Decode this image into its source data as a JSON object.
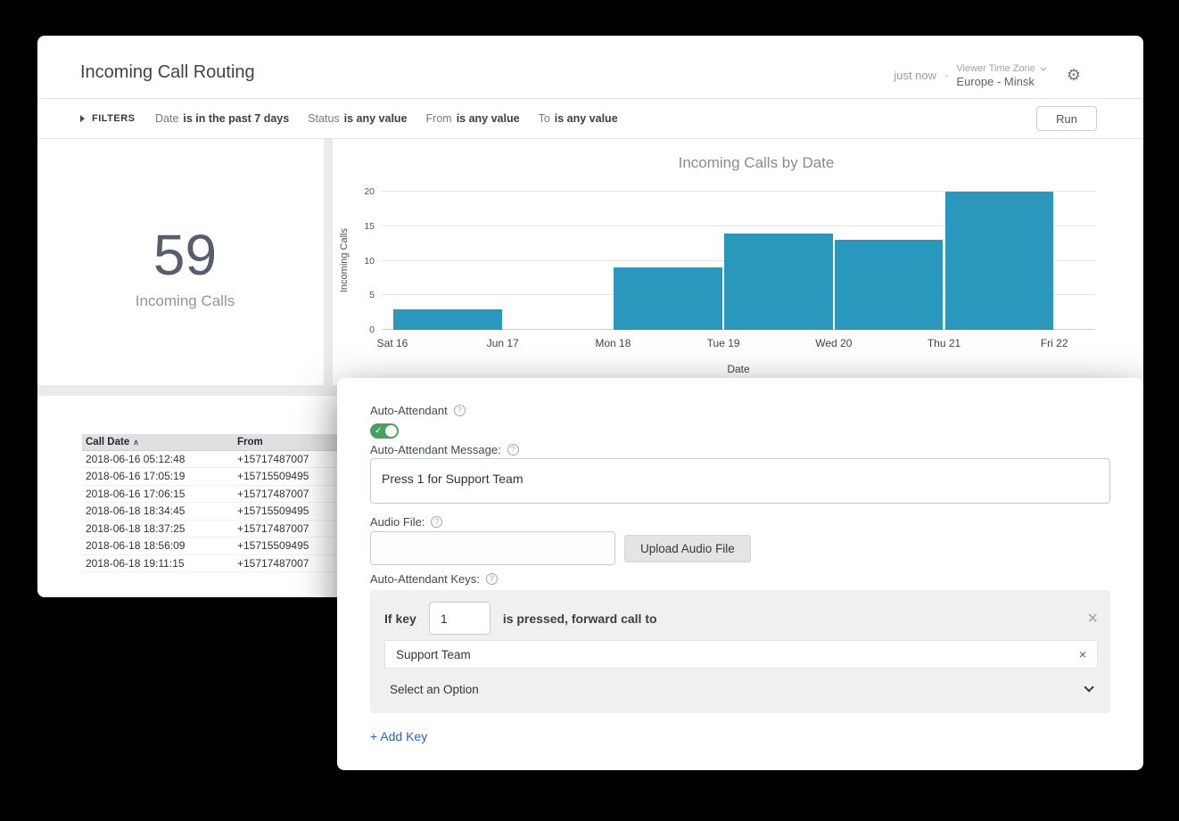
{
  "app": {
    "accent_blue": "#2563c9",
    "toggle_green": "#46a35e"
  },
  "icons": {
    "help": "?",
    "gear": "⚙",
    "close": "×",
    "remove": "×",
    "check": "✓",
    "sort_asc": "∧"
  },
  "header": {
    "title": "Incoming Call Routing",
    "updated_text": "just now",
    "dot": "·",
    "timezone_label": "Viewer Time Zone",
    "timezone_value": "Europe - Minsk"
  },
  "filters": {
    "label": "FILTERS",
    "items": [
      {
        "field": "Date",
        "condition": "is in the past 7 days"
      },
      {
        "field": "Status",
        "condition": "is any value"
      },
      {
        "field": "From",
        "condition": "is any value"
      },
      {
        "field": "To",
        "condition": "is any value"
      }
    ],
    "run_label": "Run"
  },
  "kpi": {
    "value": "59",
    "label": "Incoming Calls"
  },
  "chart_data": {
    "type": "bar",
    "title": "Incoming Calls by Date",
    "categories": [
      "Sat 16",
      "Jun 17",
      "Mon 18",
      "Tue 19",
      "Wed 20",
      "Thu 21",
      "Fri 22"
    ],
    "values": [
      3,
      0,
      9,
      14,
      13,
      20,
      0
    ],
    "xlabel": "Date",
    "ylabel": "Incoming Calls",
    "ylim": [
      0,
      20
    ],
    "yticks": [
      0,
      5,
      10,
      15,
      20
    ],
    "grid": true,
    "legend": "none",
    "bar_color": "#2a97bd"
  },
  "table": {
    "columns": [
      {
        "label": "Call Date",
        "sorted": "asc"
      },
      {
        "label": "From"
      }
    ],
    "rows": [
      [
        "2018-06-16 05:12:48",
        "+15717487007"
      ],
      [
        "2018-06-16 17:05:19",
        "+15715509495"
      ],
      [
        "2018-06-16 17:06:15",
        "+15717487007"
      ],
      [
        "2018-06-18 18:34:45",
        "+15715509495"
      ],
      [
        "2018-06-18 18:37:25",
        "+15717487007"
      ],
      [
        "2018-06-18 18:56:09",
        "+15715509495"
      ],
      [
        "2018-06-18 19:11:15",
        "+15717487007"
      ]
    ]
  },
  "attendant": {
    "toggle_label": "Auto-Attendant",
    "toggle_state": "on",
    "message_label": "Auto-Attendant Message:",
    "message_value": "Press 1 for Support Team",
    "audio_label": "Audio File:",
    "audio_value": "",
    "upload_button_label": "Upload Audio File",
    "keys_label": "Auto-Attendant Keys:",
    "key_rule": {
      "prefix": "If key",
      "key_value": "1",
      "suffix": "is pressed, forward call to",
      "selected_option": "Support Team",
      "dropdown_placeholder": "Select an Option"
    },
    "add_key_label": "+ Add Key"
  }
}
